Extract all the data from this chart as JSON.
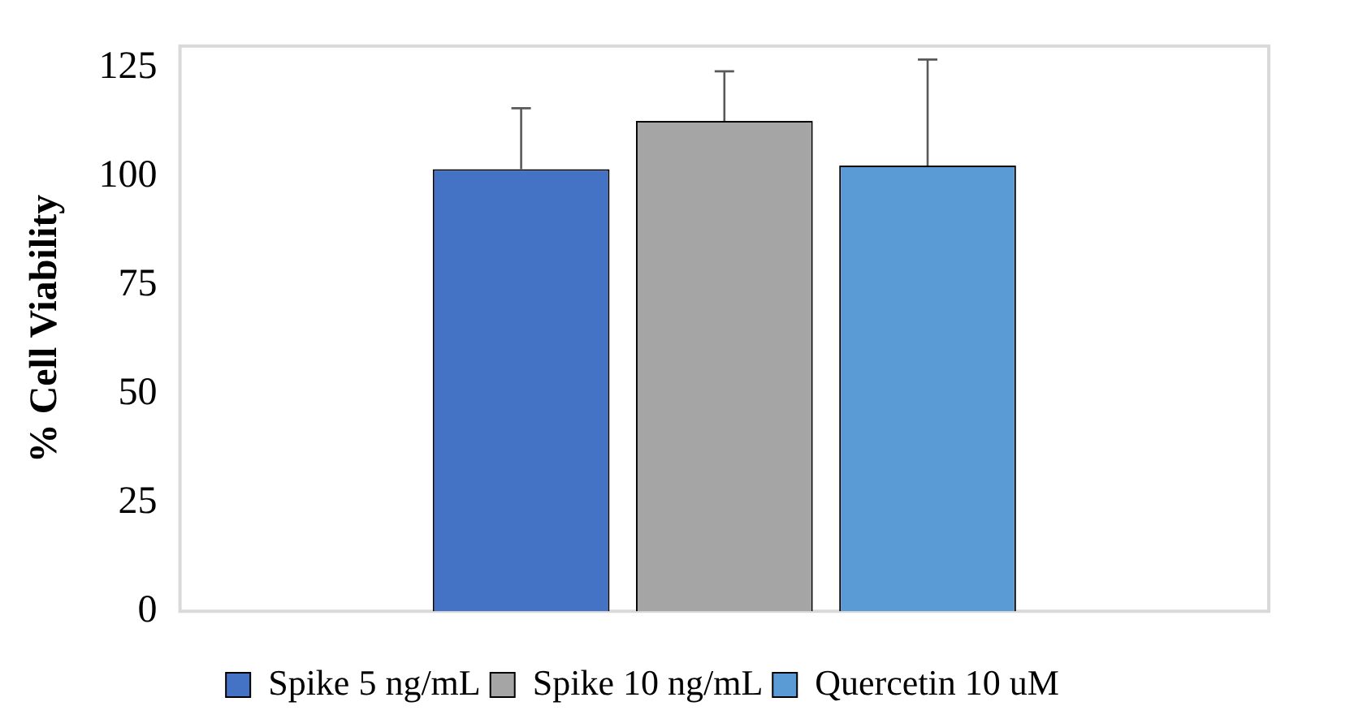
{
  "chart_data": {
    "type": "bar",
    "ylabel": "% Cell Viability",
    "categories": [
      null
    ],
    "series": [
      {
        "name": "Spike 5 ng/mL",
        "color": "#4472c4",
        "values": [
          101.7
        ],
        "errors": [
          14
        ]
      },
      {
        "name": "Spike 10 ng/mL",
        "color": "#a5a5a5",
        "values": [
          112.8
        ],
        "errors": [
          11.4
        ]
      },
      {
        "name": "Quercetin 10 uM",
        "color": "#5b9bd5",
        "values": [
          102.5
        ],
        "errors": [
          24.4
        ]
      }
    ],
    "ylim": [
      0,
      130
    ],
    "yticks": [
      0,
      25,
      50,
      75,
      100,
      125
    ],
    "grid": false,
    "legend": "bottom"
  }
}
